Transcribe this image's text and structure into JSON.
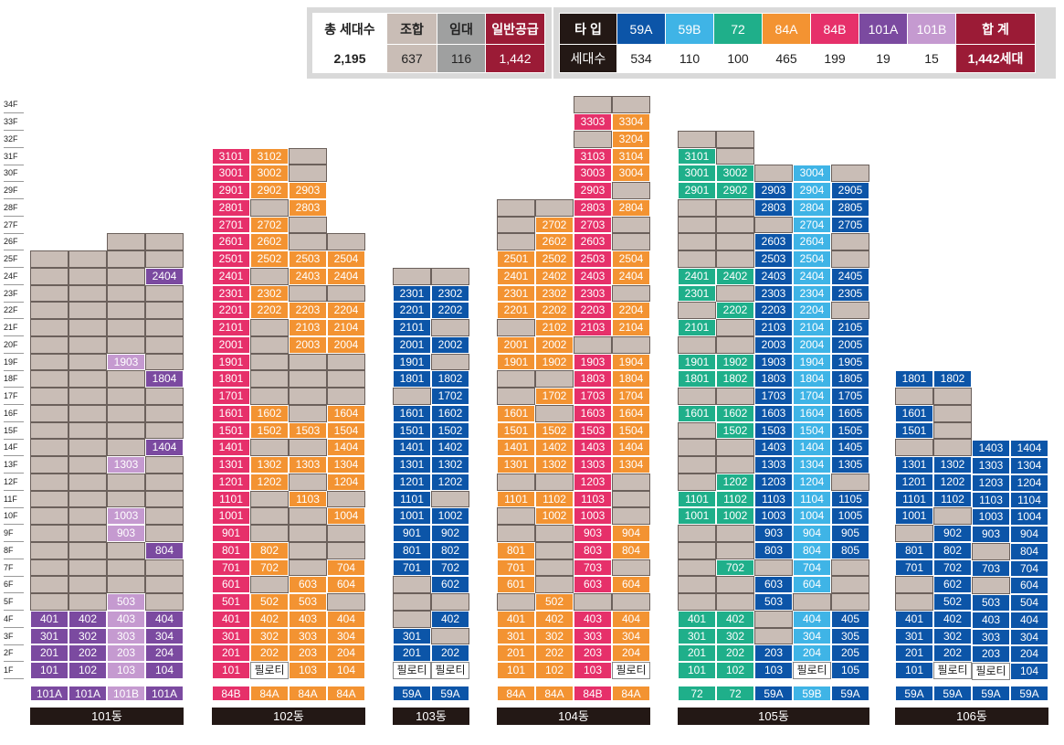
{
  "colors": {
    "empty": "#c9bdb6",
    "84B": "#e6306a",
    "84A": "#f39332",
    "101A": "#7b4aa0",
    "101B": "#c59ad0",
    "59A": "#0c55a8",
    "59B": "#3fb4e6",
    "72": "#1faf8a",
    "union": "#c9bdb6",
    "lease": "#9fa0a0",
    "general": "#9b1b36",
    "dark": "#231815"
  },
  "summary_left": {
    "headers": [
      "총 세대수",
      "조합",
      "임대",
      "일반공급"
    ],
    "values": [
      "2,195",
      "637",
      "116",
      "1,442"
    ]
  },
  "summary_right": {
    "headers": [
      "타 입",
      "59A",
      "59B",
      "72",
      "84A",
      "84B",
      "101A",
      "101B",
      "합 계"
    ],
    "row_label": "세대수",
    "values": [
      "534",
      "110",
      "100",
      "465",
      "199",
      "19",
      "15",
      "1,442세대"
    ]
  },
  "floors": [
    "34F",
    "33F",
    "32F",
    "31F",
    "30F",
    "29F",
    "28F",
    "27F",
    "26F",
    "25F",
    "24F",
    "23F",
    "22F",
    "21F",
    "20F",
    "19F",
    "18F",
    "17F",
    "16F",
    "15F",
    "14F",
    "13F",
    "12F",
    "11F",
    "10F",
    "9F",
    "8F",
    "7F",
    "6F",
    "5F",
    "4F",
    "3F",
    "2F",
    "1F"
  ],
  "buildings": [
    {
      "name": "101동",
      "types": [
        "101A",
        "101A",
        "101B",
        "101A"
      ],
      "columns": [
        {
          "top": 25,
          "units": {
            "4": "101A:401",
            "3": "101A:301",
            "2": "101A:201",
            "1": "101A:101"
          }
        },
        {
          "top": 25,
          "units": {
            "4": "101A:402",
            "3": "101A:302",
            "2": "101A:202",
            "1": "101A:102"
          }
        },
        {
          "top": 26,
          "units": {
            "19": "101B:1903",
            "13": "101B:1303",
            "10": "101B:1003",
            "9": "101B:903",
            "5": "101B:503",
            "4": "101B:403",
            "3": "101B:303",
            "2": "101B:203",
            "1": "101B:103"
          }
        },
        {
          "top": 26,
          "units": {
            "24": "101A:2404",
            "18": "101A:1804",
            "14": "101A:1404",
            "8": "101A:804",
            "4": "101A:404",
            "3": "101A:304",
            "2": "101A:204",
            "1": "101A:104"
          }
        }
      ]
    },
    {
      "name": "102동",
      "types": [
        "84B",
        "84A",
        "84A",
        "84A"
      ],
      "columns": [
        {
          "top": 31,
          "units": {
            "31": "84B:3101",
            "30": "84B:3001",
            "29": "84B:2901",
            "28": "84B:2801",
            "27": "84B:2701",
            "26": "84B:2601",
            "25": "84B:2501",
            "24": "84B:2401",
            "23": "84B:2301",
            "22": "84B:2201",
            "21": "84B:2101",
            "20": "84B:2001",
            "19": "84B:1901",
            "18": "84B:1801",
            "17": "84B:1701",
            "16": "84B:1601",
            "15": "84B:1501",
            "14": "84B:1401",
            "13": "84B:1301",
            "12": "84B:1201",
            "11": "84B:1101",
            "10": "84B:1001",
            "9": "84B:901",
            "8": "84B:801",
            "7": "84B:701",
            "6": "84B:601",
            "5": "84B:501",
            "4": "84B:401",
            "3": "84B:301",
            "2": "84B:201",
            "1": "84B:101"
          }
        },
        {
          "top": 31,
          "units": {
            "31": "84A:3102",
            "30": "84A:3002",
            "29": "84A:2902",
            "27": "84A:2702",
            "26": "84A:2602",
            "25": "84A:2502",
            "23": "84A:2302",
            "22": "84A:2202",
            "16": "84A:1602",
            "15": "84A:1502",
            "13": "84A:1302",
            "12": "84A:1202",
            "8": "84A:802",
            "7": "84A:702",
            "5": "84A:502",
            "4": "84A:402",
            "3": "84A:302",
            "2": "84A:202",
            "1": "pil:필로티"
          }
        },
        {
          "top": 31,
          "units": {
            "29": "84A:2903",
            "28": "84A:2803",
            "25": "84A:2503",
            "24": "84A:2403",
            "22": "84A:2203",
            "21": "84A:2103",
            "20": "84A:2003",
            "15": "84A:1503",
            "13": "84A:1303",
            "11": "84A:1103",
            "6": "84A:603",
            "5": "84A:503",
            "4": "84A:403",
            "3": "84A:303",
            "2": "84A:203",
            "1": "84A:103"
          }
        },
        {
          "top": 26,
          "units": {
            "25": "84A:2504",
            "24": "84A:2404",
            "22": "84A:2204",
            "21": "84A:2104",
            "20": "84A:2004",
            "16": "84A:1604",
            "15": "84A:1504",
            "14": "84A:1404",
            "13": "84A:1304",
            "12": "84A:1204",
            "10": "84A:1004",
            "7": "84A:704",
            "6": "84A:604",
            "4": "84A:404",
            "3": "84A:304",
            "2": "84A:204",
            "1": "84A:104"
          }
        }
      ]
    },
    {
      "name": "103동",
      "types": [
        "59A",
        "59A"
      ],
      "columns": [
        {
          "top": 24,
          "units": {
            "23": "59A:2301",
            "22": "59A:2201",
            "21": "59A:2101",
            "20": "59A:2001",
            "19": "59A:1901",
            "18": "59A:1801",
            "16": "59A:1601",
            "15": "59A:1501",
            "14": "59A:1401",
            "13": "59A:1301",
            "12": "59A:1201",
            "11": "59A:1101",
            "10": "59A:1001",
            "9": "59A:901",
            "8": "59A:801",
            "7": "59A:701",
            "3": "59A:301",
            "2": "59A:201",
            "1": "pil:필로티"
          }
        },
        {
          "top": 24,
          "units": {
            "23": "59A:2302",
            "22": "59A:2202",
            "20": "59A:2002",
            "18": "59A:1802",
            "17": "59A:1702",
            "16": "59A:1602",
            "15": "59A:1502",
            "14": "59A:1402",
            "13": "59A:1302",
            "12": "59A:1202",
            "10": "59A:1002",
            "9": "59A:902",
            "8": "59A:802",
            "7": "59A:702",
            "6": "59A:602",
            "4": "59A:402",
            "2": "59A:202",
            "1": "pil:필로티"
          }
        }
      ]
    },
    {
      "name": "104동",
      "types": [
        "84A",
        "84A",
        "84B",
        "84A"
      ],
      "columns": [
        {
          "top": 28,
          "units": {
            "25": "84A:2501",
            "24": "84A:2401",
            "23": "84A:2301",
            "22": "84A:2201",
            "20": "84A:2001",
            "19": "84A:1901",
            "16": "84A:1601",
            "15": "84A:1501",
            "14": "84A:1401",
            "13": "84A:1301",
            "11": "84A:1101",
            "8": "84A:801",
            "7": "84A:701",
            "6": "84A:601",
            "4": "84A:401",
            "3": "84A:301",
            "2": "84A:201",
            "1": "84A:101"
          }
        },
        {
          "top": 28,
          "units": {
            "27": "84A:2702",
            "26": "84A:2602",
            "25": "84A:2502",
            "24": "84A:2402",
            "23": "84A:2302",
            "22": "84A:2202",
            "21": "84A:2102",
            "20": "84A:2002",
            "19": "84A:1902",
            "17": "84A:1702",
            "15": "84A:1502",
            "14": "84A:1402",
            "13": "84A:1302",
            "11": "84A:1102",
            "10": "84A:1002",
            "5": "84A:502",
            "4": "84A:402",
            "3": "84A:302",
            "2": "84A:202",
            "1": "84A:102"
          }
        },
        {
          "top": 34,
          "units": {
            "33": "84B:3303",
            "31": "84B:3103",
            "30": "84B:3003",
            "29": "84B:2903",
            "28": "84B:2803",
            "27": "84B:2703",
            "26": "84B:2603",
            "25": "84B:2503",
            "24": "84B:2403",
            "23": "84B:2303",
            "22": "84B:2203",
            "21": "84B:2103",
            "19": "84B:1903",
            "18": "84B:1803",
            "17": "84B:1703",
            "16": "84B:1603",
            "15": "84B:1503",
            "14": "84B:1403",
            "13": "84B:1303",
            "12": "84B:1203",
            "11": "84B:1103",
            "10": "84B:1003",
            "9": "84B:903",
            "8": "84B:803",
            "7": "84B:703",
            "6": "84B:603",
            "4": "84B:403",
            "3": "84B:303",
            "2": "84B:203",
            "1": "84B:103"
          }
        },
        {
          "top": 34,
          "units": {
            "33": "84A:3304",
            "32": "84A:3204",
            "31": "84A:3104",
            "30": "84A:3004",
            "28": "84A:2804",
            "25": "84A:2504",
            "24": "84A:2404",
            "22": "84A:2204",
            "21": "84A:2104",
            "19": "84A:1904",
            "18": "84A:1804",
            "17": "84A:1704",
            "16": "84A:1604",
            "15": "84A:1504",
            "14": "84A:1404",
            "13": "84A:1304",
            "9": "84A:904",
            "8": "84A:804",
            "6": "84A:604",
            "4": "84A:404",
            "3": "84A:304",
            "2": "84A:204",
            "1": "pil:필로티"
          }
        }
      ]
    },
    {
      "name": "105동",
      "types": [
        "72",
        "72",
        "59A",
        "59B",
        "59A"
      ],
      "columns": [
        {
          "top": 32,
          "units": {
            "31": "72:3101",
            "30": "72:3001",
            "29": "72:2901",
            "24": "72:2401",
            "23": "72:2301",
            "21": "72:2101",
            "19": "72:1901",
            "18": "72:1801",
            "16": "72:1601",
            "11": "72:1101",
            "10": "72:1001",
            "4": "72:401",
            "3": "72:301",
            "2": "72:201",
            "1": "72:101"
          }
        },
        {
          "top": 32,
          "units": {
            "30": "72:3002",
            "29": "72:2902",
            "24": "72:2402",
            "22": "72:2202",
            "19": "72:1902",
            "18": "72:1802",
            "16": "72:1602",
            "15": "72:1502",
            "12": "72:1202",
            "11": "72:1102",
            "10": "72:1002",
            "7": "72:702",
            "4": "72:402",
            "3": "72:302",
            "2": "72:202",
            "1": "72:102"
          }
        },
        {
          "top": 30,
          "units": {
            "29": "59A:2903",
            "28": "59A:2803",
            "26": "59A:2603",
            "25": "59A:2503",
            "24": "59A:2403",
            "23": "59A:2303",
            "22": "59A:2203",
            "21": "59A:2103",
            "20": "59A:2003",
            "19": "59A:1903",
            "18": "59A:1803",
            "17": "59A:1703",
            "16": "59A:1603",
            "15": "59A:1503",
            "14": "59A:1403",
            "13": "59A:1303",
            "12": "59A:1203",
            "11": "59A:1103",
            "10": "59A:1003",
            "9": "59A:903",
            "8": "59A:803",
            "6": "59A:603",
            "5": "59A:503",
            "2": "59A:203",
            "1": "59A:103"
          }
        },
        {
          "top": 30,
          "units": {
            "30": "59B:3004",
            "29": "59B:2904",
            "28": "59B:2804",
            "27": "59B:2704",
            "26": "59B:2604",
            "25": "59B:2504",
            "24": "59B:2404",
            "23": "59B:2304",
            "22": "59B:2204",
            "21": "59B:2104",
            "20": "59B:2004",
            "19": "59B:1904",
            "18": "59B:1804",
            "17": "59B:1704",
            "16": "59B:1604",
            "15": "59B:1504",
            "14": "59B:1404",
            "13": "59B:1304",
            "12": "59B:1204",
            "11": "59B:1104",
            "10": "59B:1004",
            "9": "59B:904",
            "8": "59B:804",
            "7": "59B:704",
            "6": "59B:604",
            "4": "59B:404",
            "3": "59B:304",
            "2": "59B:204",
            "1": "pil:필로티"
          }
        },
        {
          "top": 30,
          "units": {
            "29": "59A:2905",
            "28": "59A:2805",
            "27": "59A:2705",
            "24": "59A:2405",
            "23": "59A:2305",
            "21": "59A:2105",
            "20": "59A:2005",
            "19": "59A:1905",
            "18": "59A:1805",
            "17": "59A:1705",
            "16": "59A:1605",
            "15": "59A:1505",
            "14": "59A:1405",
            "13": "59A:1305",
            "11": "59A:1105",
            "10": "59A:1005",
            "9": "59A:905",
            "8": "59A:805",
            "4": "59A:405",
            "3": "59A:305",
            "2": "59A:205",
            "1": "59A:105"
          }
        }
      ]
    },
    {
      "name": "106동",
      "types": [
        "59A",
        "59A",
        "59A",
        "59A"
      ],
      "columns": [
        {
          "top": 18,
          "units": {
            "18": "59A:1801",
            "16": "59A:1601",
            "15": "59A:1501",
            "13": "59A:1301",
            "12": "59A:1201",
            "11": "59A:1101",
            "10": "59A:1001",
            "8": "59A:801",
            "7": "59A:701",
            "4": "59A:401",
            "3": "59A:301",
            "2": "59A:201",
            "1": "59A:101"
          }
        },
        {
          "top": 18,
          "units": {
            "18": "59A:1802",
            "13": "59A:1302",
            "12": "59A:1202",
            "11": "59A:1102",
            "9": "59A:902",
            "8": "59A:802",
            "7": "59A:702",
            "6": "59A:602",
            "5": "59A:502",
            "4": "59A:402",
            "3": "59A:302",
            "2": "59A:202",
            "1": "pil:필로티"
          }
        },
        {
          "top": 14,
          "units": {
            "14": "59A:1403",
            "13": "59A:1303",
            "12": "59A:1203",
            "11": "59A:1103",
            "10": "59A:1003",
            "9": "59A:903",
            "7": "59A:703",
            "5": "59A:503",
            "4": "59A:403",
            "3": "59A:303",
            "2": "59A:203",
            "1": "pil:필로티"
          }
        },
        {
          "top": 14,
          "units": {
            "14": "59A:1404",
            "13": "59A:1304",
            "12": "59A:1204",
            "11": "59A:1104",
            "10": "59A:1004",
            "9": "59A:904",
            "8": "59A:804",
            "7": "59A:704",
            "6": "59A:604",
            "5": "59A:504",
            "4": "59A:404",
            "3": "59A:304",
            "2": "59A:204",
            "1": "59A:104"
          }
        }
      ]
    }
  ]
}
